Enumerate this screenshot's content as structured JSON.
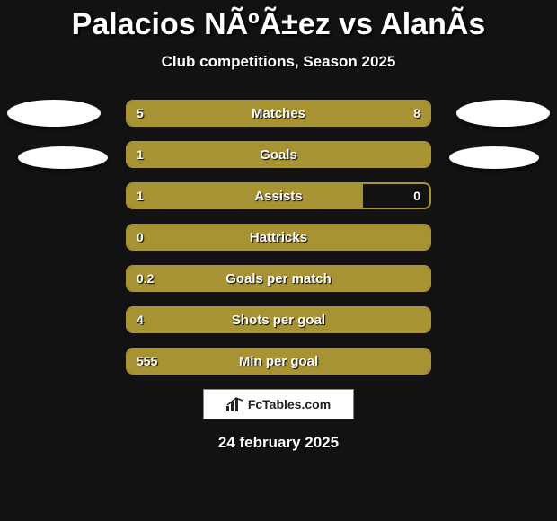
{
  "title": "Palacios NÃºÃ±ez vs AlanÃ­s",
  "subtitle": "Club competitions, Season 2025",
  "date": "24 february 2025",
  "logo_text": "FcTables.com",
  "colors": {
    "background": "#121212",
    "border": "#a79334",
    "fill": "#a79334",
    "text": "#ffffff"
  },
  "stats": [
    {
      "label": "Matches",
      "left_text": "5",
      "right_text": "8",
      "left_pct": 38.5,
      "right_pct": 61.5
    },
    {
      "label": "Goals",
      "left_text": "1",
      "right_text": "",
      "left_pct": 100,
      "right_pct": 0
    },
    {
      "label": "Assists",
      "left_text": "1",
      "right_text": "0",
      "left_pct": 78,
      "right_pct": 0
    },
    {
      "label": "Hattricks",
      "left_text": "0",
      "right_text": "",
      "left_pct": 100,
      "right_pct": 0
    },
    {
      "label": "Goals per match",
      "left_text": "0.2",
      "right_text": "",
      "left_pct": 100,
      "right_pct": 0
    },
    {
      "label": "Shots per goal",
      "left_text": "4",
      "right_text": "",
      "left_pct": 100,
      "right_pct": 0
    },
    {
      "label": "Min per goal",
      "left_text": "555",
      "right_text": "",
      "left_pct": 100,
      "right_pct": 0
    }
  ]
}
